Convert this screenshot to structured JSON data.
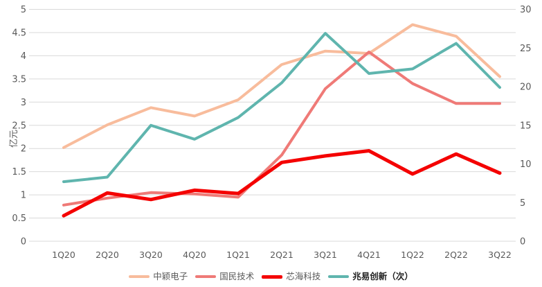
{
  "chart_data": {
    "type": "line",
    "title": "",
    "categories": [
      "1Q20",
      "2Q20",
      "3Q20",
      "4Q20",
      "1Q21",
      "2Q21",
      "3Q21",
      "4Q21",
      "1Q22",
      "2Q22",
      "3Q22"
    ],
    "series": [
      {
        "name": "中颖电子",
        "axis": "left",
        "color": "#F8BC9C",
        "width": 4,
        "values": [
          2.02,
          2.51,
          2.88,
          2.7,
          3.05,
          3.81,
          4.1,
          4.05,
          4.67,
          4.42,
          3.55
        ]
      },
      {
        "name": "国民技术",
        "axis": "left",
        "color": "#EF7A77",
        "width": 4,
        "values": [
          0.78,
          0.93,
          1.05,
          1.02,
          0.95,
          1.86,
          3.29,
          4.08,
          3.4,
          2.97,
          2.97
        ]
      },
      {
        "name": "芯海科技",
        "axis": "left",
        "color": "#F40000",
        "width": 5,
        "values": [
          0.55,
          1.04,
          0.9,
          1.1,
          1.03,
          1.7,
          1.84,
          1.95,
          1.45,
          1.88,
          1.47
        ]
      },
      {
        "name": "兆易创新（次）",
        "axis": "right",
        "color": "#5FB5AE",
        "width": 4,
        "legend_bold": true,
        "values": [
          7.7,
          8.3,
          15.0,
          13.2,
          16.0,
          20.5,
          26.9,
          21.7,
          22.3,
          25.6,
          19.9
        ]
      }
    ],
    "ylabel_left": "亿元",
    "ylim_left": [
      0,
      5
    ],
    "left_ticks": [
      "0",
      "0.5",
      "1",
      "1.5",
      "2",
      "2.5",
      "3",
      "3.5",
      "4",
      "4.5",
      "5"
    ],
    "ylim_right": [
      0,
      30
    ],
    "right_ticks": [
      "0",
      "5",
      "10",
      "15",
      "20",
      "25",
      "30"
    ],
    "grid": "horizontal",
    "grid_color": "#D9D9D9",
    "tick_color": "#595959",
    "legend_position": "bottom"
  }
}
